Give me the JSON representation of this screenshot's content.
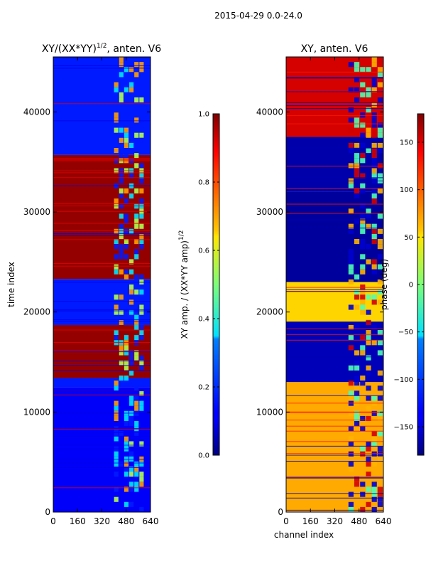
{
  "figure": {
    "suptitle": "2015-04-29 0.0-24.0"
  },
  "chart_data": [
    {
      "type": "heatmap",
      "title_main": "XY/(XX*YY)",
      "title_sup": "1/2",
      "title_rest": ", anten. V6",
      "xlabel": "",
      "ylabel": "time index",
      "xlim": [
        0,
        640
      ],
      "ylim": [
        0,
        45500
      ],
      "xticks": [
        0,
        160,
        320,
        480,
        640
      ],
      "yticks": [
        0,
        10000,
        20000,
        30000,
        40000
      ],
      "colormap": "jet",
      "colorbar": {
        "label_main": "XY amp. / (XX*YY amp)",
        "label_sup": "1/2",
        "range": [
          0.0,
          1.0
        ],
        "ticks": [
          0.0,
          0.2,
          0.4,
          0.6,
          0.8,
          1.0
        ],
        "tick_labels": [
          "0.0",
          "0.2",
          "0.4",
          "0.6",
          "0.8",
          "1.0"
        ]
      },
      "regions": [
        {
          "t_start": 0,
          "t_end": 12500,
          "value": 0.12
        },
        {
          "t_start": 12500,
          "t_end": 13400,
          "value": 0.15
        },
        {
          "t_start": 13400,
          "t_end": 18700,
          "value": 0.98
        },
        {
          "t_start": 18700,
          "t_end": 23300,
          "value": 0.15
        },
        {
          "t_start": 23300,
          "t_end": 35700,
          "value": 0.98
        },
        {
          "t_start": 35700,
          "t_end": 45500,
          "value": 0.15
        }
      ],
      "band_channels": [
        400,
        600
      ]
    },
    {
      "type": "heatmap",
      "title_main": "XY, anten. V6",
      "xlabel": "channel index",
      "ylabel": "",
      "xlim": [
        0,
        640
      ],
      "ylim": [
        0,
        45500
      ],
      "xticks": [
        0,
        160,
        320,
        480,
        640
      ],
      "yticks": [
        0,
        10000,
        20000,
        30000,
        40000
      ],
      "colormap": "jet",
      "colorbar": {
        "label": "phase (deg)",
        "range": [
          -180,
          180
        ],
        "ticks": [
          -150,
          -100,
          -50,
          0,
          50,
          100,
          150
        ],
        "tick_labels": [
          "−150",
          "−100",
          "−50",
          "0",
          "50",
          "100",
          "150"
        ]
      },
      "regions": [
        {
          "t_start": 0,
          "t_end": 13000,
          "value": 75
        },
        {
          "t_start": 13000,
          "t_end": 19000,
          "value": -160
        },
        {
          "t_start": 19000,
          "t_end": 23000,
          "value": 60
        },
        {
          "t_start": 23000,
          "t_end": 32000,
          "value": -170
        },
        {
          "t_start": 32000,
          "t_end": 37500,
          "value": -165
        },
        {
          "t_start": 37500,
          "t_end": 45500,
          "value": 150
        }
      ],
      "band_channels": [
        410,
        640
      ]
    }
  ]
}
